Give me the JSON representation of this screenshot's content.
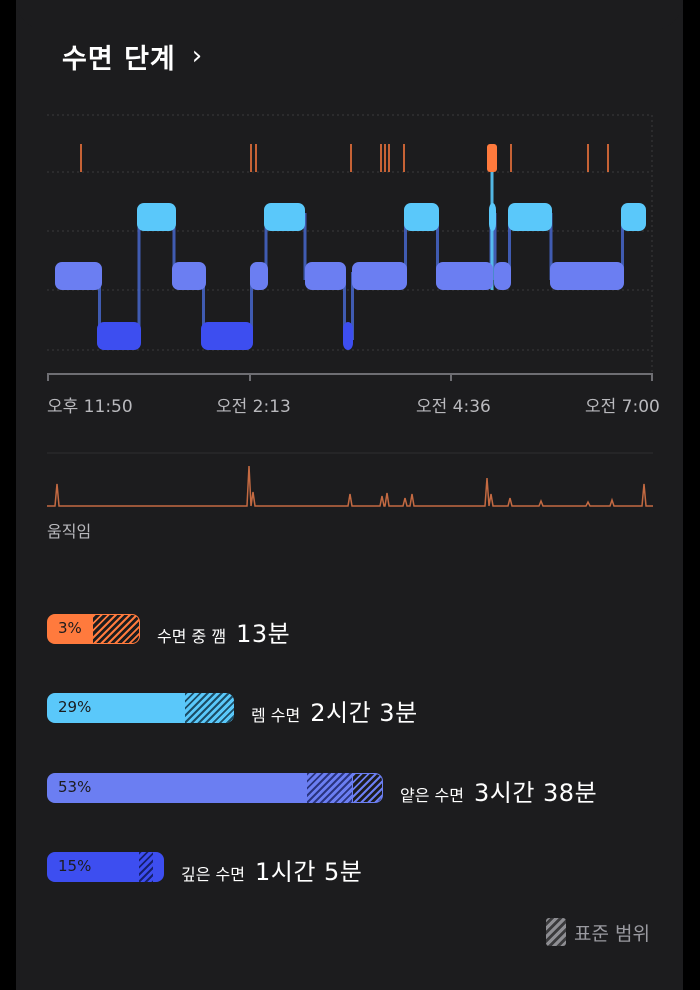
{
  "header": {
    "title": "수면 단계",
    "chevron_icon": "chevron-right-icon"
  },
  "time_axis": {
    "labels": [
      "오후 11:50",
      "오전 2:13",
      "오전 4:36",
      "오전 7:00"
    ]
  },
  "movement": {
    "label": "움직임"
  },
  "colors": {
    "awake": "#ff7a3d",
    "rem": "#5ac8fa",
    "light": "#6b7ef2",
    "deep": "#3d4ef0",
    "movement_line": "#c46a42",
    "hatch": "#8e8e93"
  },
  "stages": [
    {
      "key": "awake",
      "percent": "3%",
      "name": "수면 중 깸",
      "duration": "13분"
    },
    {
      "key": "rem",
      "percent": "29%",
      "name": "렘 수면",
      "duration": "2시간 3분"
    },
    {
      "key": "light",
      "percent": "53%",
      "name": "얕은 수면",
      "duration": "3시간 38분"
    },
    {
      "key": "deep",
      "percent": "15%",
      "name": "깊은 수면",
      "duration": "1시간 5분"
    }
  ],
  "legend": {
    "label": "표준 범위",
    "icon": "hatch-swatch-icon"
  }
}
